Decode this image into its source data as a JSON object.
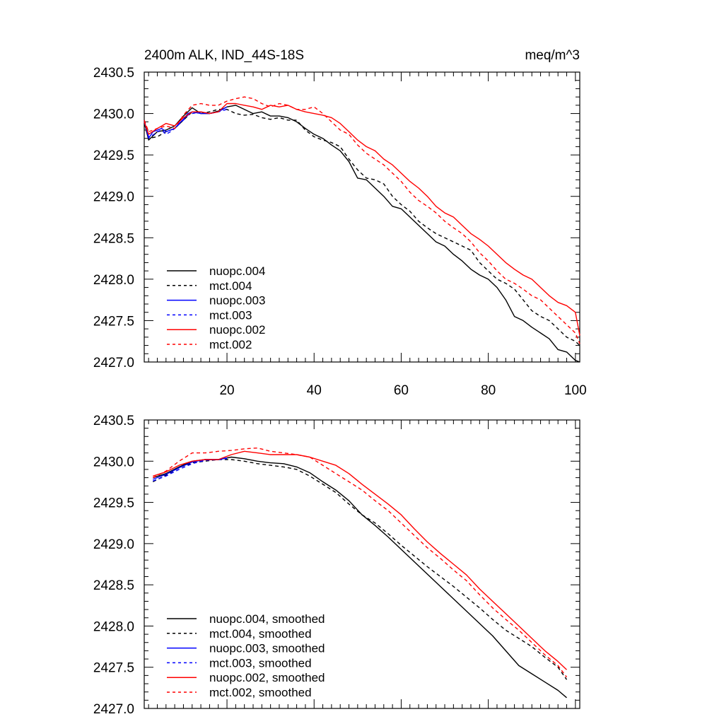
{
  "chart_data": [
    {
      "type": "line",
      "title": "2400m ALK, IND_44S-18S",
      "units": "meq/m^3",
      "xlim": [
        1,
        101
      ],
      "ylim": [
        2427.0,
        2430.5
      ],
      "xticks": [
        20,
        40,
        60,
        80,
        100
      ],
      "xtick_labels": [
        "20",
        "40",
        "60",
        "80",
        "100"
      ],
      "yticks": [
        2427.0,
        2427.5,
        2428.0,
        2428.5,
        2429.0,
        2429.5,
        2430.0,
        2430.5
      ],
      "ytick_labels": [
        "2427.0",
        "2427.5",
        "2428.0",
        "2428.5",
        "2429.0",
        "2429.5",
        "2430.0",
        "2430.5"
      ],
      "legend": [
        "nuopc.004",
        "mct.004",
        "nuopc.003",
        "mct.003",
        "nuopc.002",
        "mct.002"
      ],
      "series": [
        {
          "name": "nuopc.004",
          "color": "#000000",
          "dash": "solid",
          "x": [
            1,
            2,
            4,
            6,
            8,
            10,
            12,
            14,
            16,
            18,
            20,
            22,
            24,
            26,
            28,
            30,
            32,
            34,
            36,
            38,
            40,
            42,
            44,
            46,
            48,
            50,
            52,
            54,
            56,
            58,
            60,
            62,
            64,
            66,
            68,
            70,
            72,
            74,
            76,
            78,
            80,
            82,
            84,
            86,
            88,
            90,
            92,
            94,
            96,
            98,
            100,
            101
          ],
          "y": [
            2429.9,
            2429.68,
            2429.78,
            2429.8,
            2429.85,
            2429.97,
            2430.07,
            2430.0,
            2430.0,
            2430.03,
            2430.08,
            2430.1,
            2430.05,
            2430.0,
            2430.02,
            2429.97,
            2429.97,
            2429.95,
            2429.9,
            2429.82,
            2429.75,
            2429.7,
            2429.62,
            2429.55,
            2429.42,
            2429.22,
            2429.2,
            2429.1,
            2429.0,
            2428.88,
            2428.85,
            2428.75,
            2428.65,
            2428.55,
            2428.45,
            2428.4,
            2428.3,
            2428.22,
            2428.12,
            2428.05,
            2428.0,
            2427.9,
            2427.75,
            2427.55,
            2427.5,
            2427.42,
            2427.35,
            2427.28,
            2427.15,
            2427.12,
            2427.02,
            2427.0
          ]
        },
        {
          "name": "mct.004",
          "color": "#000000",
          "dash": "dashed",
          "x": [
            1,
            2,
            4,
            6,
            8,
            10,
            12,
            14,
            16,
            18,
            20,
            22,
            24,
            26,
            28,
            30,
            32,
            34,
            36,
            38,
            40,
            42,
            44,
            46,
            48,
            50,
            52,
            54,
            56,
            58,
            60,
            62,
            64,
            66,
            68,
            70,
            72,
            74,
            76,
            78,
            80,
            82,
            84,
            86,
            88,
            90,
            92,
            94,
            96,
            98,
            100,
            101
          ],
          "y": [
            2429.88,
            2429.7,
            2429.72,
            2429.78,
            2429.82,
            2429.92,
            2430.02,
            2430.0,
            2430.02,
            2430.05,
            2430.05,
            2430.0,
            2429.98,
            2429.99,
            2429.95,
            2429.93,
            2429.95,
            2429.92,
            2429.92,
            2429.8,
            2429.72,
            2429.68,
            2429.65,
            2429.6,
            2429.45,
            2429.32,
            2429.22,
            2429.2,
            2429.15,
            2429.0,
            2428.9,
            2428.82,
            2428.7,
            2428.62,
            2428.55,
            2428.5,
            2428.45,
            2428.4,
            2428.35,
            2428.2,
            2428.1,
            2428.0,
            2427.95,
            2427.88,
            2427.75,
            2427.62,
            2427.55,
            2427.5,
            2427.4,
            2427.3,
            2427.25,
            2427.2
          ]
        },
        {
          "name": "nuopc.003",
          "color": "#0000ff",
          "dash": "solid",
          "x": [
            1,
            2,
            3,
            4,
            5,
            6,
            7,
            8,
            9,
            10,
            11,
            12,
            14,
            16,
            18,
            20
          ],
          "y": [
            2429.92,
            2429.7,
            2429.78,
            2429.8,
            2429.82,
            2429.78,
            2429.8,
            2429.82,
            2429.88,
            2429.93,
            2430.0,
            2430.02,
            2430.0,
            2430.0,
            2430.02,
            2430.08
          ]
        },
        {
          "name": "mct.003",
          "color": "#0000ff",
          "dash": "dashed",
          "x": [
            1,
            2,
            3,
            4,
            5,
            6,
            7,
            8,
            9,
            10,
            11,
            12,
            14,
            16,
            18,
            20
          ],
          "y": [
            2429.9,
            2429.72,
            2429.74,
            2429.78,
            2429.8,
            2429.75,
            2429.78,
            2429.82,
            2429.87,
            2429.92,
            2429.98,
            2430.0,
            2430.02,
            2430.0,
            2430.02,
            2430.05
          ]
        },
        {
          "name": "nuopc.002",
          "color": "#ff0000",
          "dash": "solid",
          "x": [
            1,
            2,
            4,
            6,
            8,
            10,
            12,
            14,
            16,
            18,
            20,
            22,
            24,
            26,
            28,
            30,
            32,
            34,
            36,
            38,
            40,
            42,
            44,
            46,
            48,
            50,
            52,
            54,
            56,
            58,
            60,
            62,
            64,
            66,
            68,
            70,
            72,
            74,
            76,
            78,
            80,
            82,
            84,
            86,
            88,
            90,
            92,
            94,
            96,
            98,
            100,
            101
          ],
          "y": [
            2429.9,
            2429.75,
            2429.82,
            2429.88,
            2429.85,
            2429.95,
            2430.02,
            2430.02,
            2430.0,
            2430.02,
            2430.12,
            2430.12,
            2430.1,
            2430.08,
            2430.05,
            2430.1,
            2430.08,
            2430.1,
            2430.05,
            2430.02,
            2430.0,
            2429.98,
            2429.95,
            2429.88,
            2429.78,
            2429.68,
            2429.6,
            2429.55,
            2429.45,
            2429.38,
            2429.28,
            2429.18,
            2429.1,
            2429.0,
            2428.88,
            2428.8,
            2428.75,
            2428.65,
            2428.55,
            2428.48,
            2428.4,
            2428.3,
            2428.2,
            2428.12,
            2428.05,
            2428.0,
            2427.9,
            2427.8,
            2427.72,
            2427.68,
            2427.6,
            2427.32
          ]
        },
        {
          "name": "mct.002",
          "color": "#ff0000",
          "dash": "dashed",
          "x": [
            1,
            2,
            4,
            6,
            8,
            10,
            12,
            14,
            16,
            18,
            20,
            22,
            24,
            26,
            28,
            30,
            32,
            34,
            36,
            38,
            40,
            42,
            44,
            46,
            48,
            50,
            52,
            54,
            56,
            58,
            60,
            62,
            64,
            66,
            68,
            70,
            72,
            74,
            76,
            78,
            80,
            82,
            84,
            86,
            88,
            90,
            92,
            94,
            96,
            98,
            100,
            101
          ],
          "y": [
            2429.92,
            2429.78,
            2429.82,
            2429.85,
            2429.82,
            2429.98,
            2430.1,
            2430.12,
            2430.1,
            2430.1,
            2430.15,
            2430.18,
            2430.2,
            2430.18,
            2430.12,
            2430.08,
            2430.12,
            2430.1,
            2430.05,
            2430.05,
            2430.08,
            2430.0,
            2429.9,
            2429.8,
            2429.75,
            2429.62,
            2429.52,
            2429.45,
            2429.38,
            2429.28,
            2429.18,
            2429.05,
            2428.95,
            2428.88,
            2428.8,
            2428.7,
            2428.62,
            2428.55,
            2428.45,
            2428.32,
            2428.22,
            2428.1,
            2428.0,
            2427.95,
            2427.88,
            2427.8,
            2427.75,
            2427.65,
            2427.55,
            2427.45,
            2427.35,
            2427.22
          ]
        }
      ]
    },
    {
      "type": "line",
      "title": "",
      "xlim": [
        1,
        101
      ],
      "ylim": [
        2427.0,
        2430.5
      ],
      "yticks": [
        2427.0,
        2427.5,
        2428.0,
        2428.5,
        2429.0,
        2429.5,
        2430.0,
        2430.5
      ],
      "ytick_labels": [
        "2427.0",
        "2427.5",
        "2428.0",
        "2428.5",
        "2429.0",
        "2429.5",
        "2430.0",
        "2430.5"
      ],
      "legend": [
        "nuopc.004, smoothed",
        "mct.004, smoothed",
        "nuopc.003, smoothed",
        "mct.003, smoothed",
        "nuopc.002, smoothed",
        "mct.002, smoothed"
      ],
      "series": [
        {
          "name": "nuopc.004, smoothed",
          "color": "#000000",
          "dash": "solid",
          "x": [
            3,
            6,
            9,
            12,
            15,
            18,
            21,
            24,
            27,
            30,
            33,
            36,
            39,
            42,
            45,
            48,
            51,
            54,
            57,
            60,
            63,
            66,
            69,
            72,
            75,
            78,
            81,
            84,
            87,
            90,
            93,
            96,
            98
          ],
          "y": [
            2429.8,
            2429.85,
            2429.93,
            2430.0,
            2430.02,
            2430.02,
            2430.05,
            2430.03,
            2430.0,
            2429.98,
            2429.97,
            2429.93,
            2429.86,
            2429.75,
            2429.65,
            2429.52,
            2429.35,
            2429.22,
            2429.08,
            2428.93,
            2428.78,
            2428.63,
            2428.48,
            2428.33,
            2428.18,
            2428.03,
            2427.88,
            2427.7,
            2427.52,
            2427.42,
            2427.32,
            2427.22,
            2427.13
          ]
        },
        {
          "name": "mct.004, smoothed",
          "color": "#000000",
          "dash": "dashed",
          "x": [
            3,
            6,
            9,
            12,
            15,
            18,
            21,
            24,
            27,
            30,
            33,
            36,
            39,
            42,
            45,
            48,
            51,
            54,
            57,
            60,
            63,
            66,
            69,
            72,
            75,
            78,
            81,
            84,
            87,
            90,
            93,
            96,
            98
          ],
          "y": [
            2429.75,
            2429.83,
            2429.92,
            2429.98,
            2430.0,
            2430.02,
            2430.02,
            2430.0,
            2429.97,
            2429.95,
            2429.93,
            2429.9,
            2429.82,
            2429.72,
            2429.62,
            2429.48,
            2429.35,
            2429.25,
            2429.12,
            2428.98,
            2428.85,
            2428.72,
            2428.6,
            2428.48,
            2428.35,
            2428.22,
            2428.08,
            2427.95,
            2427.85,
            2427.75,
            2427.62,
            2427.5,
            2427.35
          ]
        },
        {
          "name": "nuopc.003, smoothed",
          "color": "#0000ff",
          "dash": "solid",
          "x": [
            3,
            6,
            9,
            12,
            15,
            18,
            20
          ],
          "y": [
            2429.78,
            2429.84,
            2429.92,
            2429.99,
            2430.02,
            2430.02,
            2430.04
          ]
        },
        {
          "name": "mct.003, smoothed",
          "color": "#0000ff",
          "dash": "dashed",
          "x": [
            3,
            6,
            9,
            12,
            15,
            18,
            20
          ],
          "y": [
            2429.76,
            2429.82,
            2429.9,
            2429.97,
            2430.01,
            2430.02,
            2430.03
          ]
        },
        {
          "name": "nuopc.002, smoothed",
          "color": "#ff0000",
          "dash": "solid",
          "x": [
            3,
            6,
            9,
            12,
            15,
            18,
            21,
            24,
            27,
            30,
            33,
            36,
            39,
            42,
            45,
            48,
            51,
            54,
            57,
            60,
            63,
            66,
            69,
            72,
            75,
            78,
            81,
            84,
            87,
            90,
            93,
            96,
            98
          ],
          "y": [
            2429.82,
            2429.87,
            2429.95,
            2430.0,
            2430.02,
            2430.02,
            2430.08,
            2430.12,
            2430.1,
            2430.08,
            2430.08,
            2430.08,
            2430.05,
            2430.0,
            2429.95,
            2429.85,
            2429.72,
            2429.6,
            2429.48,
            2429.35,
            2429.18,
            2429.02,
            2428.88,
            2428.75,
            2428.62,
            2428.45,
            2428.3,
            2428.15,
            2428.0,
            2427.85,
            2427.7,
            2427.57,
            2427.47
          ]
        },
        {
          "name": "mct.002, smoothed",
          "color": "#ff0000",
          "dash": "dashed",
          "x": [
            3,
            6,
            9,
            12,
            15,
            18,
            21,
            24,
            27,
            30,
            33,
            36,
            39,
            42,
            45,
            48,
            51,
            54,
            57,
            60,
            63,
            66,
            69,
            72,
            75,
            78,
            81,
            84,
            87,
            90,
            93,
            96,
            98
          ],
          "y": [
            2429.8,
            2429.88,
            2430.0,
            2430.1,
            2430.1,
            2430.12,
            2430.13,
            2430.15,
            2430.16,
            2430.12,
            2430.1,
            2430.08,
            2430.05,
            2429.95,
            2429.85,
            2429.75,
            2429.65,
            2429.52,
            2429.4,
            2429.25,
            2429.1,
            2428.95,
            2428.82,
            2428.68,
            2428.55,
            2428.38,
            2428.22,
            2428.08,
            2427.95,
            2427.8,
            2427.65,
            2427.52,
            2427.38
          ]
        }
      ]
    }
  ]
}
